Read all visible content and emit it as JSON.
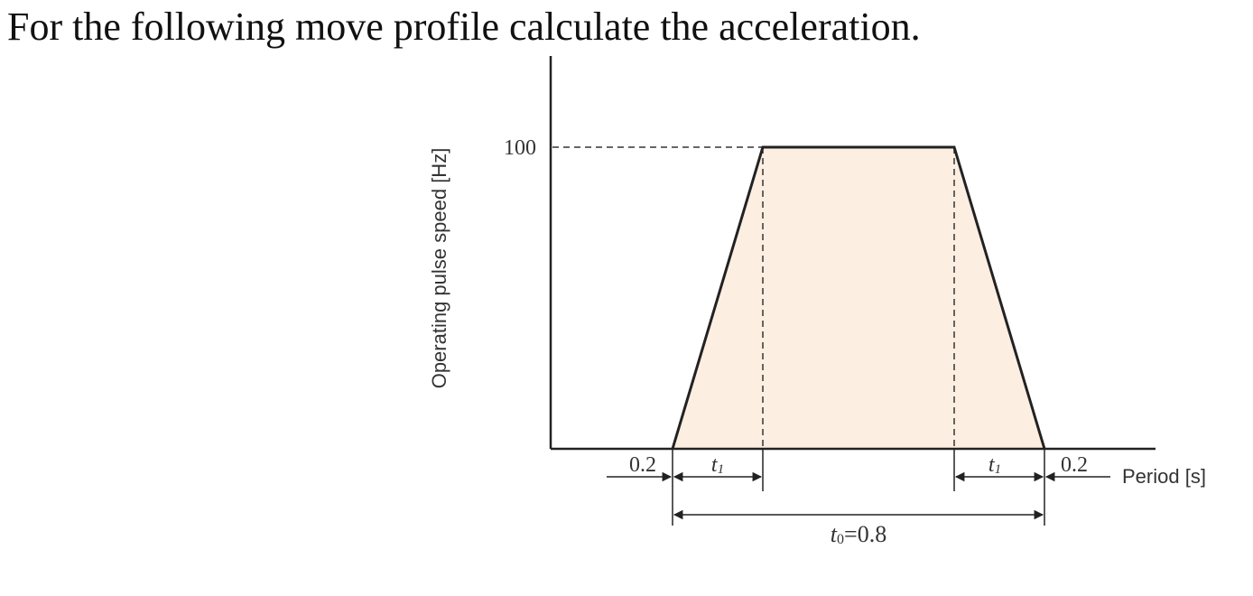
{
  "question": "For the following move profile calculate the acceleration.",
  "figure": {
    "y_axis_label": "Operating pulse speed [Hz]",
    "x_axis_label": "Period [s]",
    "y_peak_label": "100",
    "accel_lead_label": "0.2",
    "decel_lag_label": "0.2",
    "t1_left_label": "t1",
    "t1_right_label": "t1",
    "total_time_label": "t0=0.8",
    "fill_color": "#fdeee2",
    "line_color": "#222222"
  },
  "chart_data": {
    "type": "area",
    "x": [
      0.2,
      0.3,
      0.9,
      1.0
    ],
    "y": [
      0,
      100,
      100,
      0
    ],
    "xlabel": "Period [s]",
    "ylabel": "Operating pulse speed [Hz]",
    "annotations": [
      "100",
      "0.2",
      "t1",
      "t1",
      "0.2",
      "t0=0.8"
    ]
  }
}
